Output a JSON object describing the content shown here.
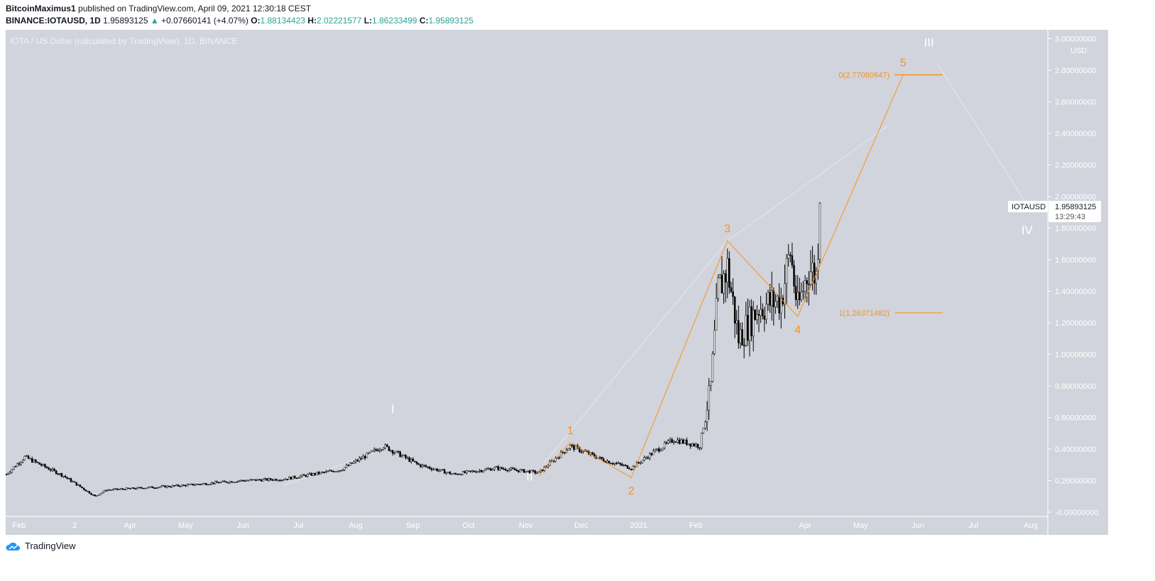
{
  "header": {
    "author": "BitcoinMaximus1",
    "published": "published on TradingView.com, April 09, 2021 12:30:18 CEST",
    "symbol": "BINANCE:IOTAUSD, 1D",
    "last": "1.95893125",
    "change": "+0.07660141 (+4.07%)",
    "o_label": "O:",
    "o": "1.88134423",
    "h_label": "H:",
    "h": "2.02221577",
    "l_label": "L:",
    "l": "1.86233499",
    "c_label": "C:",
    "c": "1.95893125"
  },
  "brand": "TradingView",
  "colors": {
    "bg": "#d1d4dc",
    "wave": "#f7931a",
    "candle": "#000000",
    "up": "#26a69a"
  },
  "chart_data": {
    "type": "candlestick",
    "title": "IOTA / US Dollar (calculated by TradingView), 1D, BINANCE",
    "currency": "USD",
    "ylim": [
      -0.1,
      3.0
    ],
    "y_ticks": [
      "3.00000000",
      "2.80000000",
      "2.60000000",
      "2.40000000",
      "2.20000000",
      "2.00000000",
      "1.80000000",
      "1.60000000",
      "1.40000000",
      "1.20000000",
      "1.00000000",
      "0.80000000",
      "0.60000000",
      "0.40000000",
      "0.20000000",
      "-0.00000000"
    ],
    "y_tick_values": [
      3.0,
      2.8,
      2.6,
      2.4,
      2.2,
      2.0,
      1.8,
      1.6,
      1.4,
      1.2,
      1.0,
      0.8,
      0.6,
      0.4,
      0.2,
      0.0
    ],
    "x_ticks": [
      {
        "label": "Feb",
        "day": 0
      },
      {
        "label": "2",
        "day": 30
      },
      {
        "label": "Apr",
        "day": 60
      },
      {
        "label": "May",
        "day": 90
      },
      {
        "label": "Jun",
        "day": 121
      },
      {
        "label": "Jul",
        "day": 151
      },
      {
        "label": "Aug",
        "day": 182
      },
      {
        "label": "Sep",
        "day": 213
      },
      {
        "label": "Oct",
        "day": 243
      },
      {
        "label": "Nov",
        "day": 274
      },
      {
        "label": "Dec",
        "day": 304
      },
      {
        "label": "2021",
        "day": 335
      },
      {
        "label": "Feb",
        "day": 366
      },
      {
        "label": "Apr",
        "day": 425
      },
      {
        "label": "May",
        "day": 455
      },
      {
        "label": "Jun",
        "day": 486
      },
      {
        "label": "Jul",
        "day": 516
      },
      {
        "label": "Aug",
        "day": 547
      }
    ],
    "x_unit": "days since 2020-02-01",
    "price_path": [
      [
        -7,
        0.24
      ],
      [
        3,
        0.35
      ],
      [
        24,
        0.23
      ],
      [
        41,
        0.1
      ],
      [
        47,
        0.14
      ],
      [
        89,
        0.17
      ],
      [
        120,
        0.2
      ],
      [
        143,
        0.21
      ],
      [
        174,
        0.27
      ],
      [
        197,
        0.42
      ],
      [
        216,
        0.3
      ],
      [
        235,
        0.24
      ],
      [
        258,
        0.28
      ],
      [
        281,
        0.25
      ],
      [
        298,
        0.42
      ],
      [
        316,
        0.33
      ],
      [
        331,
        0.28
      ],
      [
        343,
        0.38
      ],
      [
        354,
        0.46
      ],
      [
        368,
        0.42
      ],
      [
        374,
        0.8
      ],
      [
        378,
        1.4
      ],
      [
        383,
        1.55
      ],
      [
        389,
        1.1
      ],
      [
        400,
        1.3
      ],
      [
        412,
        1.35
      ],
      [
        417,
        1.65
      ],
      [
        421,
        1.28
      ],
      [
        427,
        1.55
      ],
      [
        431,
        1.5
      ],
      [
        433,
        1.96
      ]
    ],
    "last_price": {
      "symbol": "IOTAUSD",
      "value": "1.95893125",
      "countdown": "13:29:43"
    },
    "waves": {
      "points": [
        [
          281,
          0.23
        ],
        [
          298,
          0.44
        ],
        [
          331,
          0.22
        ],
        [
          383,
          1.72
        ],
        [
          421,
          1.24
        ],
        [
          478,
          2.77
        ]
      ],
      "labels": [
        "1",
        "2",
        "3",
        "4",
        "5"
      ]
    },
    "major_waves": [
      {
        "label": "I",
        "day": 202,
        "price": 0.63
      },
      {
        "label": "II",
        "day": 276,
        "price": 0.2
      },
      {
        "label": "III",
        "day": 492,
        "price": 2.95
      },
      {
        "label": "IV",
        "day": 545,
        "price": 1.95
      }
    ],
    "fib": [
      {
        "label": "0(2.77090647)",
        "price": 2.77090647
      },
      {
        "label": "1(1.26371482)",
        "price": 1.26371482
      }
    ]
  }
}
